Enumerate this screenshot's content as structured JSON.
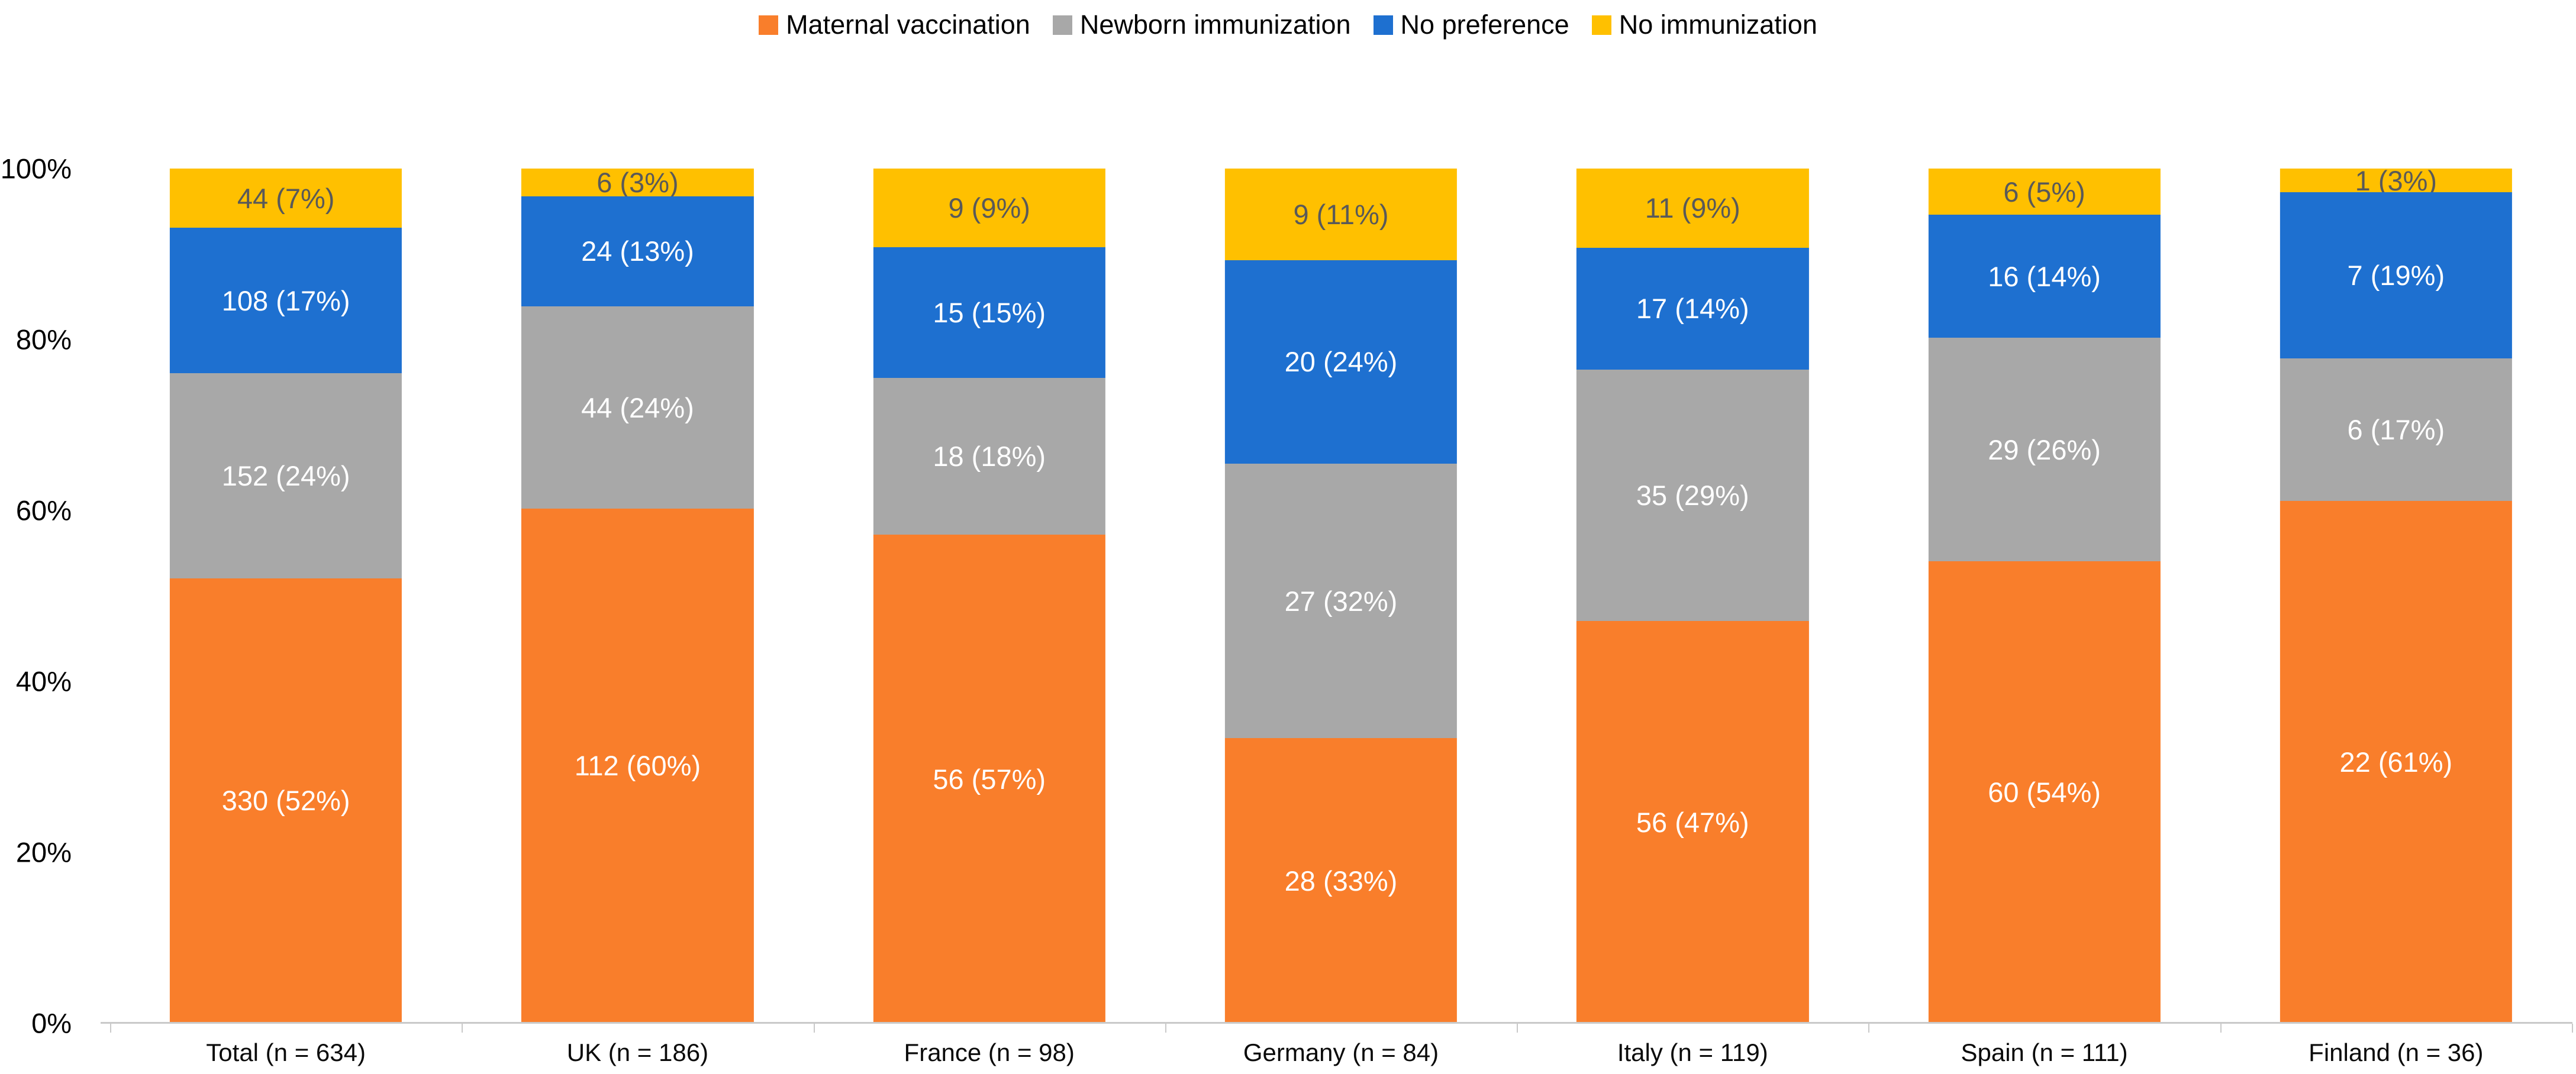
{
  "chart_data": {
    "type": "bar",
    "subtype": "stacked-100-percent-column",
    "title": "",
    "xlabel": "",
    "ylabel": "",
    "ylim": [
      0,
      100
    ],
    "grid": false,
    "legend_position": "top-center",
    "y_ticks": [
      "0%",
      "20%",
      "40%",
      "60%",
      "80%",
      "100%"
    ],
    "y_tick_values": [
      0,
      20,
      40,
      60,
      80,
      100
    ],
    "categories": [
      "Total (n = 634)",
      "UK (n = 186)",
      "France (n = 98)",
      "Germany (n = 84)",
      "Italy (n = 119)",
      "Spain (n = 111)",
      "Finland (n = 36)"
    ],
    "category_n": [
      634,
      186,
      98,
      84,
      119,
      111,
      36
    ],
    "series": [
      {
        "name": "Maternal vaccination",
        "color": "#f97e2b",
        "label_color": "#ffffff",
        "counts": [
          330,
          112,
          56,
          28,
          56,
          60,
          22
        ],
        "labels": [
          "330 (52%)",
          "112 (60%)",
          "56 (57%)",
          "28 (33%)",
          "56 (47%)",
          "60 (54%)",
          "22 (61%)"
        ]
      },
      {
        "name": "Newborn immunization",
        "color": "#a8a8a8",
        "label_color": "#ffffff",
        "counts": [
          152,
          44,
          18,
          27,
          35,
          29,
          6
        ],
        "labels": [
          "152 (24%)",
          "44 (24%)",
          "18 (18%)",
          "27 (32%)",
          "35 (29%)",
          "29 (26%)",
          "6 (17%)"
        ]
      },
      {
        "name": "No preference",
        "color": "#1e70d0",
        "label_color": "#ffffff",
        "counts": [
          108,
          24,
          15,
          20,
          17,
          16,
          7
        ],
        "labels": [
          "108 (17%)",
          "24 (13%)",
          "15 (15%)",
          "20 (24%)",
          "17 (14%)",
          "16 (14%)",
          "7 (19%)"
        ]
      },
      {
        "name": "No immunization",
        "color": "#ffc000",
        "label_color": "#595959",
        "counts": [
          44,
          6,
          9,
          9,
          11,
          6,
          1
        ],
        "labels": [
          "44 (7%)",
          "6 (3%)",
          "9 (9%)",
          "9 (11%)",
          "11 (9%)",
          "6 (5%)",
          "1 (3%)"
        ]
      }
    ],
    "colors": {
      "axis_line": "#c9c9c9",
      "axis_text": "#000000",
      "yellow_segment_text": "#595959",
      "segment_text": "#ffffff"
    }
  }
}
